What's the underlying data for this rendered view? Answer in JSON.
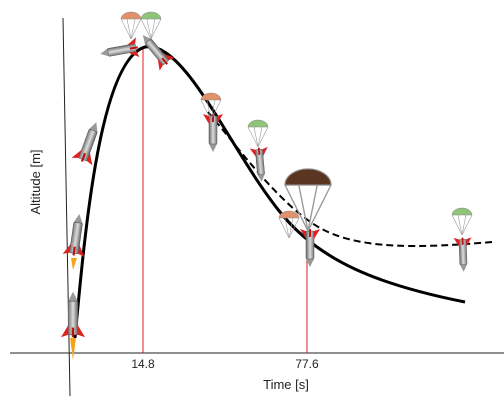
{
  "y_axis_label": "Altitude [m]",
  "x_axis_label": "Time [s]",
  "markers": [
    {
      "label": "14.8"
    },
    {
      "label": "77.6"
    }
  ]
}
